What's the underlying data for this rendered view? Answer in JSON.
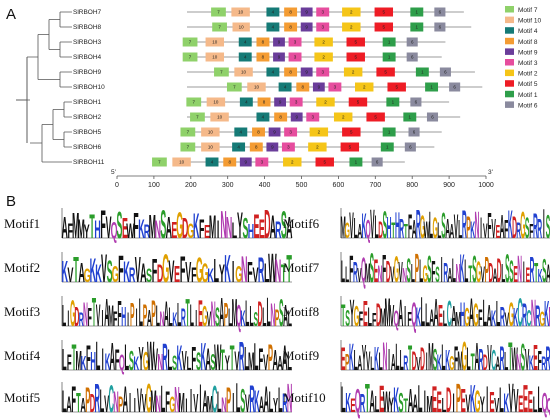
{
  "panels": {
    "a_label": "A",
    "b_label": "B"
  },
  "colors": {
    "motif1": "#2e9e4a",
    "motif2": "#f5c518",
    "motif3": "#e64d9e",
    "motif4": "#157a76",
    "motif5": "#ee1c25",
    "motif6": "#8a8a9e",
    "motif7": "#8fd16a",
    "motif8": "#f49c33",
    "motif9": "#6a3d9a",
    "motif10": "#f5b98a"
  },
  "legend": [
    {
      "motif": "7",
      "label": "Motif 7"
    },
    {
      "motif": "10",
      "label": "Motif 10"
    },
    {
      "motif": "4",
      "label": "Motif 4"
    },
    {
      "motif": "8",
      "label": "Motif 8"
    },
    {
      "motif": "9",
      "label": "Motif 9"
    },
    {
      "motif": "3",
      "label": "Motif 3"
    },
    {
      "motif": "2",
      "label": "Motif 2"
    },
    {
      "motif": "5",
      "label": "Motif 5"
    },
    {
      "motif": "1",
      "label": "Motif 1"
    },
    {
      "motif": "6",
      "label": "Motif 6"
    }
  ],
  "axis": {
    "start_label": "5'",
    "end_label": "3'",
    "ticks": [
      0,
      100,
      200,
      300,
      400,
      500,
      600,
      700,
      800,
      900,
      1000
    ],
    "min": 0,
    "max": 1000
  },
  "genes": [
    {
      "name": "SlRBOH7",
      "length": 940,
      "motifs": [
        {
          "m": "7",
          "start": 255,
          "end": 295
        },
        {
          "m": "10",
          "start": 310,
          "end": 360
        },
        {
          "m": "4",
          "start": 405,
          "end": 440
        },
        {
          "m": "8",
          "start": 453,
          "end": 488
        },
        {
          "m": "9",
          "start": 498,
          "end": 530
        },
        {
          "m": "3",
          "start": 540,
          "end": 575
        },
        {
          "m": "2",
          "start": 610,
          "end": 660
        },
        {
          "m": "5",
          "start": 698,
          "end": 748
        },
        {
          "m": "1",
          "start": 795,
          "end": 830
        },
        {
          "m": "6",
          "start": 860,
          "end": 890
        }
      ]
    },
    {
      "name": "SlRBOH8",
      "length": 960,
      "motifs": [
        {
          "m": "7",
          "start": 258,
          "end": 298
        },
        {
          "m": "10",
          "start": 313,
          "end": 360
        },
        {
          "m": "4",
          "start": 405,
          "end": 440
        },
        {
          "m": "8",
          "start": 453,
          "end": 488
        },
        {
          "m": "9",
          "start": 498,
          "end": 530
        },
        {
          "m": "3",
          "start": 540,
          "end": 575
        },
        {
          "m": "2",
          "start": 610,
          "end": 660
        },
        {
          "m": "5",
          "start": 698,
          "end": 748
        },
        {
          "m": "1",
          "start": 795,
          "end": 830
        },
        {
          "m": "6",
          "start": 860,
          "end": 890
        }
      ]
    },
    {
      "name": "SlRBOH3",
      "length": 890,
      "motifs": [
        {
          "m": "7",
          "start": 178,
          "end": 218
        },
        {
          "m": "10",
          "start": 240,
          "end": 290
        },
        {
          "m": "4",
          "start": 330,
          "end": 365
        },
        {
          "m": "8",
          "start": 378,
          "end": 413
        },
        {
          "m": "9",
          "start": 423,
          "end": 455
        },
        {
          "m": "3",
          "start": 465,
          "end": 500
        },
        {
          "m": "2",
          "start": 535,
          "end": 585
        },
        {
          "m": "5",
          "start": 622,
          "end": 672
        },
        {
          "m": "1",
          "start": 720,
          "end": 755
        },
        {
          "m": "6",
          "start": 785,
          "end": 815
        }
      ]
    },
    {
      "name": "SlRBOH4",
      "length": 880,
      "motifs": [
        {
          "m": "7",
          "start": 178,
          "end": 218
        },
        {
          "m": "10",
          "start": 240,
          "end": 290
        },
        {
          "m": "4",
          "start": 330,
          "end": 365
        },
        {
          "m": "8",
          "start": 378,
          "end": 413
        },
        {
          "m": "9",
          "start": 423,
          "end": 455
        },
        {
          "m": "3",
          "start": 465,
          "end": 500
        },
        {
          "m": "2",
          "start": 535,
          "end": 585
        },
        {
          "m": "5",
          "start": 622,
          "end": 672
        },
        {
          "m": "1",
          "start": 720,
          "end": 755
        },
        {
          "m": "6",
          "start": 785,
          "end": 815
        }
      ]
    },
    {
      "name": "SlRBOH9",
      "length": 970,
      "motifs": [
        {
          "m": "7",
          "start": 263,
          "end": 303
        },
        {
          "m": "10",
          "start": 318,
          "end": 368
        },
        {
          "m": "4",
          "start": 405,
          "end": 440
        },
        {
          "m": "8",
          "start": 453,
          "end": 488
        },
        {
          "m": "9",
          "start": 498,
          "end": 530
        },
        {
          "m": "3",
          "start": 540,
          "end": 575
        },
        {
          "m": "2",
          "start": 615,
          "end": 665
        },
        {
          "m": "5",
          "start": 703,
          "end": 753
        },
        {
          "m": "1",
          "start": 810,
          "end": 845
        },
        {
          "m": "6",
          "start": 875,
          "end": 905
        }
      ]
    },
    {
      "name": "SlRBOH10",
      "length": 990,
      "motifs": [
        {
          "m": "7",
          "start": 298,
          "end": 338
        },
        {
          "m": "10",
          "start": 353,
          "end": 403
        },
        {
          "m": "4",
          "start": 438,
          "end": 473
        },
        {
          "m": "8",
          "start": 486,
          "end": 521
        },
        {
          "m": "9",
          "start": 531,
          "end": 563
        },
        {
          "m": "3",
          "start": 573,
          "end": 608
        },
        {
          "m": "2",
          "start": 645,
          "end": 695
        },
        {
          "m": "5",
          "start": 733,
          "end": 783
        },
        {
          "m": "1",
          "start": 835,
          "end": 870
        },
        {
          "m": "6",
          "start": 900,
          "end": 930
        }
      ]
    },
    {
      "name": "SlRBOH1",
      "length": 900,
      "motifs": [
        {
          "m": "7",
          "start": 188,
          "end": 228
        },
        {
          "m": "10",
          "start": 243,
          "end": 293
        },
        {
          "m": "4",
          "start": 333,
          "end": 368
        },
        {
          "m": "8",
          "start": 381,
          "end": 416
        },
        {
          "m": "9",
          "start": 426,
          "end": 458
        },
        {
          "m": "3",
          "start": 468,
          "end": 503
        },
        {
          "m": "2",
          "start": 540,
          "end": 590
        },
        {
          "m": "5",
          "start": 628,
          "end": 678
        },
        {
          "m": "1",
          "start": 730,
          "end": 765
        },
        {
          "m": "6",
          "start": 795,
          "end": 825
        }
      ]
    },
    {
      "name": "SlRBOH2",
      "length": 930,
      "motifs": [
        {
          "m": "7",
          "start": 198,
          "end": 238
        },
        {
          "m": "10",
          "start": 253,
          "end": 303
        },
        {
          "m": "4",
          "start": 378,
          "end": 413
        },
        {
          "m": "8",
          "start": 426,
          "end": 461
        },
        {
          "m": "9",
          "start": 471,
          "end": 503
        },
        {
          "m": "3",
          "start": 513,
          "end": 548
        },
        {
          "m": "2",
          "start": 588,
          "end": 638
        },
        {
          "m": "5",
          "start": 676,
          "end": 726
        },
        {
          "m": "1",
          "start": 776,
          "end": 811
        },
        {
          "m": "6",
          "start": 840,
          "end": 870
        }
      ]
    },
    {
      "name": "SlRBOH5",
      "length": 880,
      "motifs": [
        {
          "m": "7",
          "start": 172,
          "end": 212
        },
        {
          "m": "10",
          "start": 228,
          "end": 278
        },
        {
          "m": "4",
          "start": 318,
          "end": 353
        },
        {
          "m": "8",
          "start": 366,
          "end": 401
        },
        {
          "m": "9",
          "start": 411,
          "end": 443
        },
        {
          "m": "3",
          "start": 453,
          "end": 488
        },
        {
          "m": "2",
          "start": 522,
          "end": 572
        },
        {
          "m": "5",
          "start": 610,
          "end": 660
        },
        {
          "m": "1",
          "start": 720,
          "end": 755
        },
        {
          "m": "6",
          "start": 790,
          "end": 820
        }
      ]
    },
    {
      "name": "SlRBOH6",
      "length": 860,
      "motifs": [
        {
          "m": "7",
          "start": 172,
          "end": 212
        },
        {
          "m": "10",
          "start": 228,
          "end": 278
        },
        {
          "m": "4",
          "start": 312,
          "end": 347
        },
        {
          "m": "8",
          "start": 360,
          "end": 395
        },
        {
          "m": "9",
          "start": 405,
          "end": 437
        },
        {
          "m": "3",
          "start": 447,
          "end": 482
        },
        {
          "m": "2",
          "start": 518,
          "end": 568
        },
        {
          "m": "5",
          "start": 606,
          "end": 656
        },
        {
          "m": "1",
          "start": 715,
          "end": 750
        },
        {
          "m": "6",
          "start": 780,
          "end": 810
        }
      ]
    },
    {
      "name": "SlRBOH11",
      "length": 780,
      "motifs": [
        {
          "m": "7",
          "start": 95,
          "end": 135
        },
        {
          "m": "10",
          "start": 150,
          "end": 200
        },
        {
          "m": "4",
          "start": 240,
          "end": 275
        },
        {
          "m": "8",
          "start": 288,
          "end": 323
        },
        {
          "m": "9",
          "start": 333,
          "end": 365
        },
        {
          "m": "3",
          "start": 375,
          "end": 410
        },
        {
          "m": "2",
          "start": 450,
          "end": 500
        },
        {
          "m": "5",
          "start": 538,
          "end": 588
        },
        {
          "m": "1",
          "start": 630,
          "end": 665
        },
        {
          "m": "6",
          "start": 690,
          "end": 720
        }
      ]
    }
  ],
  "motif_logos": [
    {
      "label": "Motif1",
      "sequence": "AFMMYTHFVQSEWFKRMNSAEGDGKFEMINNLYSHEEDARSA"
    },
    {
      "label": "Motif2",
      "sequence": "KVTAGKKVSGFKRVASFDGVEFVFGGKLYKIGNFVRLWNTT"
    },
    {
      "label": "Motif3",
      "sequence": "LIGDRNFTVIAMFFHIPILPAPLNALKLRTLIEGVNSAPLMQKLLSDLLNPSAL"
    },
    {
      "label": "Motif4",
      "sequence": "LFTMKFHLIKAFQLSKYGWVNRLSKVLFSKASWTYTVRLMLFVPAAAL"
    },
    {
      "label": "Motif5",
      "sequence": "LAFTAPDRLVCNPAIIVVGMNLFGNMIIVIAMCLNPILSVRKAALYLRN"
    },
    {
      "label": "Motif6",
      "sequence": "MGVLAKQVLDSHTHRTFARGWLGLSAAVLRPKNIVFVEAFKDRGSFRRISAVNFG"
    },
    {
      "label": "Motif7",
      "sequence": "LLFRVQMSENFDVGVNSLPLGSFSIRALNKLTSGVPDADLSSENIERTKSASMKLS"
    },
    {
      "label": "Motif8",
      "sequence": "TSYGFELFDMMVQAIFQKLLAAELCAMHGAGFLAKLRVGKCRCNRGKNVNPF"
    },
    {
      "label": "Motif9",
      "sequence": "EPKLAYVLKLNIALLRTDVDIMSKLKGFMGLTARDVCARLTWNSVKEFRRIFLPL"
    },
    {
      "label": "Motif10",
      "sequence": "LKEQRTALEWYKSTAALIMEELDIPEVKGYIEVLKVVEEELLQQDWNG"
    }
  ]
}
